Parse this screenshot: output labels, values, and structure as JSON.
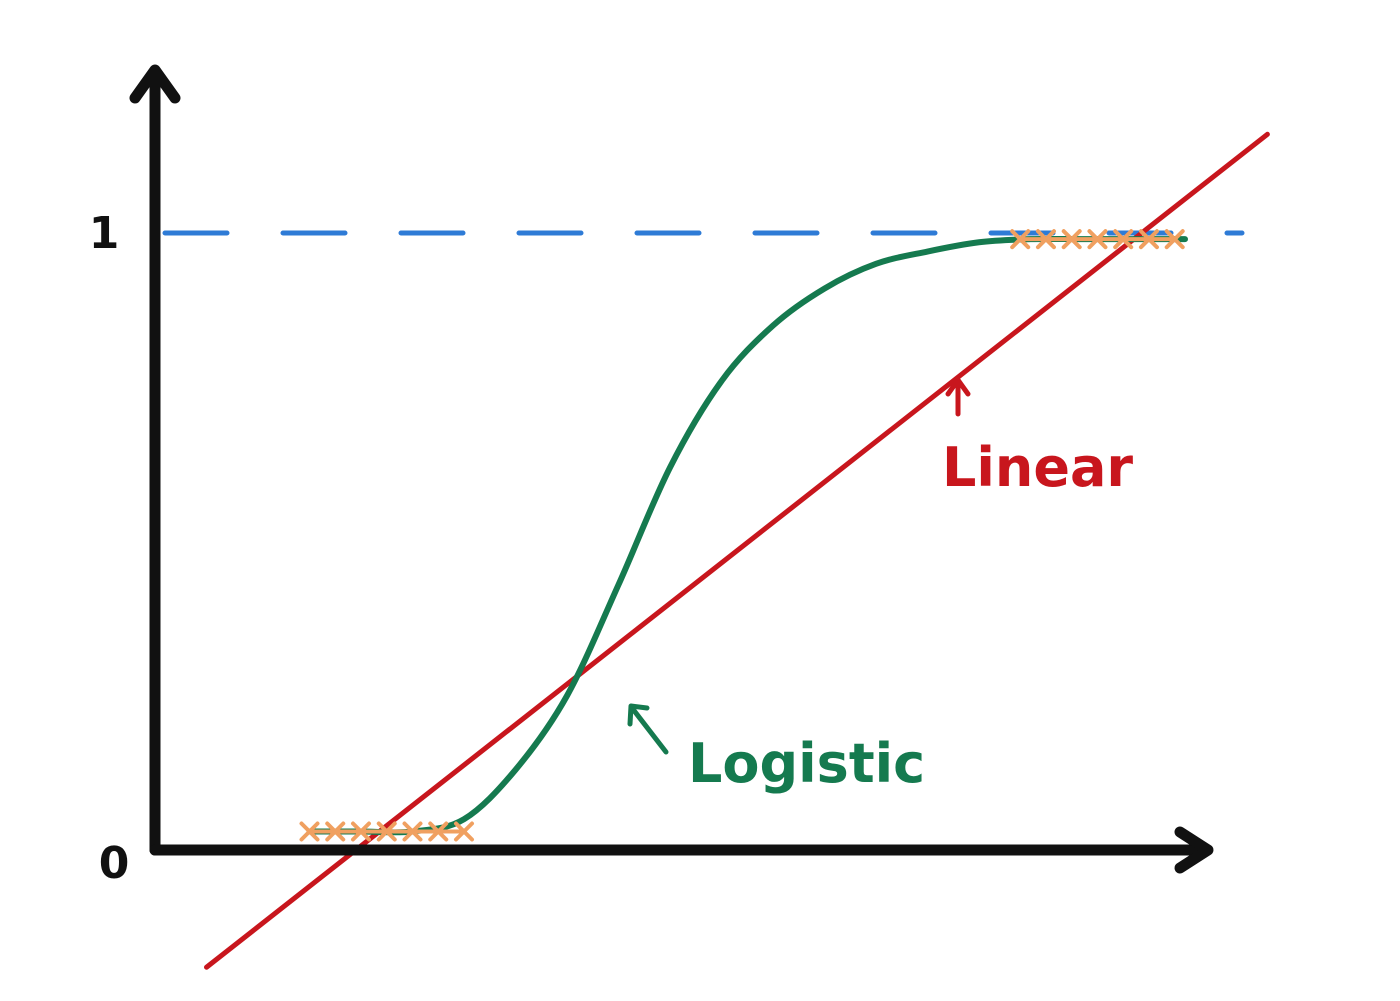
{
  "colors": {
    "axis": "#111111",
    "linear": "#c8161d",
    "logistic": "#157a4f",
    "threshold": "#2e7bd6",
    "points": "#f0a060"
  },
  "chart_data": {
    "type": "line",
    "title": "",
    "xlabel": "",
    "ylabel": "",
    "y_ticks": [
      "1",
      "0"
    ],
    "xlim": [
      0,
      10
    ],
    "ylim": [
      0,
      1
    ],
    "grid": false,
    "reference_line": {
      "y": 1,
      "style": "dashed"
    },
    "series": [
      {
        "name": "Linear",
        "kind": "straight",
        "x": [
          0.5,
          10.8
        ],
        "y": [
          -0.19,
          1.16
        ]
      },
      {
        "name": "Logistic",
        "kind": "sigmoid",
        "x": [
          1.5,
          2.0,
          2.5,
          3.0,
          3.5,
          4.0,
          4.5,
          5.0,
          5.5,
          6.0,
          6.5,
          7.0,
          7.5,
          8.0,
          8.5,
          9.0,
          9.5,
          10.0
        ],
        "y": [
          0.03,
          0.03,
          0.03,
          0.05,
          0.13,
          0.25,
          0.43,
          0.62,
          0.76,
          0.85,
          0.91,
          0.95,
          0.97,
          0.985,
          0.99,
          0.99,
          0.99,
          0.99
        ]
      }
    ],
    "points": [
      {
        "x": 1.5,
        "y": 0.03
      },
      {
        "x": 1.75,
        "y": 0.03
      },
      {
        "x": 2.0,
        "y": 0.03
      },
      {
        "x": 2.25,
        "y": 0.03
      },
      {
        "x": 2.5,
        "y": 0.03
      },
      {
        "x": 2.75,
        "y": 0.03
      },
      {
        "x": 3.0,
        "y": 0.03
      },
      {
        "x": 8.4,
        "y": 0.99
      },
      {
        "x": 8.65,
        "y": 0.99
      },
      {
        "x": 8.9,
        "y": 0.99
      },
      {
        "x": 9.15,
        "y": 0.99
      },
      {
        "x": 9.4,
        "y": 0.99
      },
      {
        "x": 9.65,
        "y": 0.99
      },
      {
        "x": 9.9,
        "y": 0.99
      }
    ],
    "annotations": [
      {
        "text": "Linear",
        "series": "Linear",
        "x": 7.8,
        "y": 0.75
      },
      {
        "text": "Logistic",
        "series": "Logistic",
        "x": 4.3,
        "y": 0.23
      }
    ]
  }
}
